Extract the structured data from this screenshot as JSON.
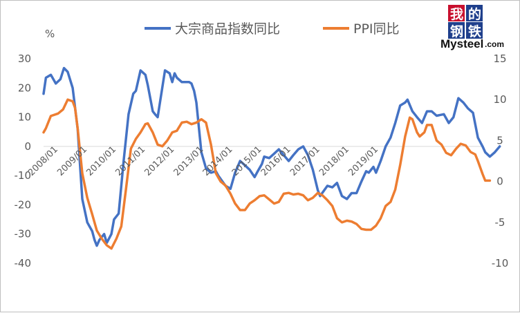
{
  "chart_data": {
    "type": "line",
    "left_axis": {
      "unit_label": "%",
      "ylim": [
        -40,
        30
      ],
      "ticks": [
        30,
        20,
        10,
        0,
        -10,
        -20,
        -30,
        -40
      ]
    },
    "right_axis": {
      "ylim": [
        -10,
        15
      ],
      "ticks": [
        15,
        10,
        5,
        0,
        -5,
        -10
      ]
    },
    "x_ticks": [
      "2008/01",
      "2009/01",
      "2010/01",
      "2011/01",
      "2012/01",
      "2013/01",
      "2014/01",
      "2015/01",
      "2016/01",
      "2017/01",
      "2018/01",
      "2019/01"
    ],
    "legend_position": "top",
    "grid": false,
    "series": [
      {
        "name": "大宗商品指数同比",
        "axis": "left",
        "color": "#4472c4",
        "points": [
          [
            0,
            18
          ],
          [
            0.08,
            23.5
          ],
          [
            0.25,
            24.5
          ],
          [
            0.42,
            21.5
          ],
          [
            0.58,
            23
          ],
          [
            0.7,
            26.8
          ],
          [
            0.83,
            25.5
          ],
          [
            1.0,
            20
          ],
          [
            1.17,
            6
          ],
          [
            1.33,
            -18
          ],
          [
            1.5,
            -26
          ],
          [
            1.67,
            -29
          ],
          [
            1.75,
            -32
          ],
          [
            1.83,
            -34
          ],
          [
            1.92,
            -32
          ],
          [
            2.0,
            -31
          ],
          [
            2.08,
            -30
          ],
          [
            2.17,
            -33
          ],
          [
            2.33,
            -30
          ],
          [
            2.42,
            -25
          ],
          [
            2.58,
            -23
          ],
          [
            2.75,
            -5
          ],
          [
            2.92,
            11
          ],
          [
            3.08,
            18
          ],
          [
            3.17,
            19
          ],
          [
            3.33,
            26
          ],
          [
            3.5,
            24.5
          ],
          [
            3.58,
            21
          ],
          [
            3.75,
            12
          ],
          [
            3.83,
            11
          ],
          [
            3.92,
            10
          ],
          [
            4.17,
            26
          ],
          [
            4.33,
            25
          ],
          [
            4.42,
            22
          ],
          [
            4.5,
            25
          ],
          [
            4.58,
            23.5
          ],
          [
            4.75,
            22
          ],
          [
            4.92,
            22
          ],
          [
            5.0,
            22
          ],
          [
            5.08,
            21.5
          ],
          [
            5.17,
            19
          ],
          [
            5.25,
            15
          ],
          [
            5.42,
            -2
          ],
          [
            5.58,
            -7.5
          ],
          [
            5.75,
            -9
          ],
          [
            5.92,
            -8.5
          ],
          [
            6.0,
            -10
          ],
          [
            6.25,
            -13.5
          ],
          [
            6.42,
            -14.5
          ],
          [
            6.58,
            -9
          ],
          [
            6.75,
            -5
          ],
          [
            6.92,
            -6.5
          ],
          [
            7.08,
            -8
          ],
          [
            7.25,
            -10.5
          ],
          [
            7.33,
            -9
          ],
          [
            7.5,
            -6
          ],
          [
            7.58,
            -3.5
          ],
          [
            7.75,
            -4
          ],
          [
            7.92,
            -2.5
          ],
          [
            8.08,
            -1
          ],
          [
            8.25,
            -3
          ],
          [
            8.42,
            -5
          ],
          [
            8.58,
            -3
          ],
          [
            8.75,
            -1
          ],
          [
            8.92,
            0
          ],
          [
            9.08,
            -3
          ],
          [
            9.25,
            -8
          ],
          [
            9.42,
            -15
          ],
          [
            9.5,
            -17
          ],
          [
            9.75,
            -13.5
          ],
          [
            9.92,
            -14
          ],
          [
            10.08,
            -12.5
          ],
          [
            10.25,
            -17
          ],
          [
            10.42,
            -18
          ],
          [
            10.58,
            -16
          ],
          [
            10.75,
            -16
          ],
          [
            10.92,
            -12
          ],
          [
            11.08,
            -8.5
          ],
          [
            11.17,
            -9
          ],
          [
            11.33,
            -7
          ],
          [
            11.42,
            -9
          ],
          [
            11.58,
            -5
          ],
          [
            11.75,
            0
          ],
          [
            11.92,
            3
          ],
          [
            12.08,
            8
          ],
          [
            12.25,
            14
          ],
          [
            12.42,
            15
          ],
          [
            12.5,
            16
          ],
          [
            12.67,
            12
          ],
          [
            12.83,
            10
          ],
          [
            13.0,
            8
          ],
          [
            13.17,
            12
          ],
          [
            13.33,
            12
          ],
          [
            13.5,
            10.5
          ],
          [
            13.75,
            11
          ],
          [
            13.92,
            8
          ],
          [
            14.08,
            10
          ],
          [
            14.25,
            16.5
          ],
          [
            14.42,
            15
          ],
          [
            14.58,
            13
          ],
          [
            14.75,
            11.5
          ],
          [
            14.92,
            3
          ],
          [
            15.08,
            0
          ],
          [
            15.17,
            -2
          ],
          [
            15.33,
            -3.5
          ],
          [
            15.5,
            -2
          ],
          [
            15.67,
            0
          ]
        ]
      },
      {
        "name": "PPI同比",
        "axis": "right",
        "color": "#ed7d31",
        "points": [
          [
            0,
            6
          ],
          [
            0.08,
            6.5
          ],
          [
            0.25,
            8
          ],
          [
            0.5,
            8.3
          ],
          [
            0.67,
            8.8
          ],
          [
            0.83,
            10
          ],
          [
            1.0,
            9.8
          ],
          [
            1.08,
            9
          ],
          [
            1.17,
            6.5
          ],
          [
            1.33,
            1
          ],
          [
            1.5,
            -2
          ],
          [
            1.67,
            -4
          ],
          [
            1.83,
            -6
          ],
          [
            2.0,
            -7
          ],
          [
            2.17,
            -7.8
          ],
          [
            2.33,
            -8.2
          ],
          [
            2.5,
            -7
          ],
          [
            2.67,
            -5.5
          ],
          [
            2.83,
            -1
          ],
          [
            3.0,
            4
          ],
          [
            3.17,
            5.2
          ],
          [
            3.33,
            6
          ],
          [
            3.5,
            7
          ],
          [
            3.58,
            7.1
          ],
          [
            3.75,
            6
          ],
          [
            3.92,
            4.5
          ],
          [
            4.08,
            4.3
          ],
          [
            4.25,
            5
          ],
          [
            4.42,
            6
          ],
          [
            4.58,
            6.2
          ],
          [
            4.75,
            7.2
          ],
          [
            4.92,
            7.3
          ],
          [
            5.08,
            7
          ],
          [
            5.25,
            7.2
          ],
          [
            5.42,
            7.6
          ],
          [
            5.58,
            7.2
          ],
          [
            5.75,
            4.5
          ],
          [
            5.92,
            1
          ],
          [
            6.08,
            0
          ],
          [
            6.25,
            -0.5
          ],
          [
            6.42,
            -1.5
          ],
          [
            6.58,
            -2.7
          ],
          [
            6.75,
            -3.5
          ],
          [
            6.92,
            -3.5
          ],
          [
            7.08,
            -2.7
          ],
          [
            7.25,
            -2.3
          ],
          [
            7.42,
            -1.8
          ],
          [
            7.58,
            -1.7
          ],
          [
            7.75,
            -2.2
          ],
          [
            7.92,
            -2.7
          ],
          [
            8.08,
            -2.5
          ],
          [
            8.25,
            -1.5
          ],
          [
            8.42,
            -1.4
          ],
          [
            8.58,
            -1.6
          ],
          [
            8.75,
            -1.5
          ],
          [
            8.92,
            -1.7
          ],
          [
            9.08,
            -2.3
          ],
          [
            9.25,
            -2
          ],
          [
            9.42,
            -1.4
          ],
          [
            9.58,
            -1.7
          ],
          [
            9.75,
            -2.3
          ],
          [
            9.92,
            -3
          ],
          [
            10.08,
            -4.5
          ],
          [
            10.25,
            -5
          ],
          [
            10.42,
            -4.8
          ],
          [
            10.58,
            -4.9
          ],
          [
            10.75,
            -5.2
          ],
          [
            10.92,
            -5.8
          ],
          [
            11.08,
            -5.9
          ],
          [
            11.25,
            -5.9
          ],
          [
            11.42,
            -5.4
          ],
          [
            11.58,
            -4.5
          ],
          [
            11.75,
            -3
          ],
          [
            11.92,
            -2.5
          ],
          [
            12.08,
            -1
          ],
          [
            12.25,
            2
          ],
          [
            12.42,
            5.5
          ],
          [
            12.58,
            7.8
          ],
          [
            12.67,
            7.6
          ],
          [
            12.83,
            6
          ],
          [
            12.92,
            5.5
          ],
          [
            13.08,
            6
          ],
          [
            13.17,
            6.9
          ],
          [
            13.33,
            6.9
          ],
          [
            13.5,
            5
          ],
          [
            13.67,
            4.5
          ],
          [
            13.83,
            3.5
          ],
          [
            14.0,
            3.2
          ],
          [
            14.17,
            4
          ],
          [
            14.33,
            4.6
          ],
          [
            14.5,
            4.4
          ],
          [
            14.67,
            3.6
          ],
          [
            14.83,
            3.3
          ],
          [
            14.92,
            2.5
          ],
          [
            15.08,
            0.9
          ],
          [
            15.17,
            0.1
          ],
          [
            15.33,
            0.1
          ]
        ]
      }
    ]
  },
  "logo": {
    "cn_chars": [
      "我",
      "的",
      "钢",
      "铁"
    ],
    "en": "Mysteel",
    "com": ".com"
  }
}
